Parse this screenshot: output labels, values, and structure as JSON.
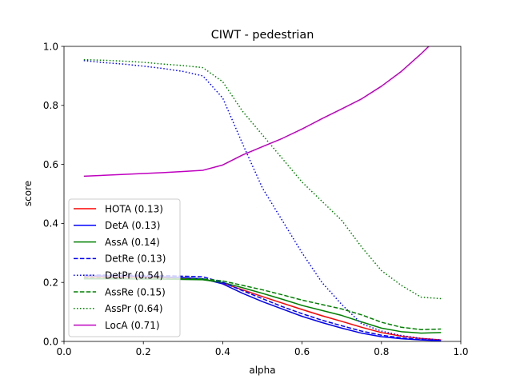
{
  "chart_data": {
    "type": "line",
    "title": "CIWT - pedestrian",
    "xlabel": "alpha",
    "ylabel": "score",
    "xlim": [
      0.0,
      1.0
    ],
    "ylim": [
      0.0,
      1.0
    ],
    "xticks": [
      "0.0",
      "0.2",
      "0.4",
      "0.6",
      "0.8",
      "1.0"
    ],
    "yticks": [
      "0.0",
      "0.2",
      "0.4",
      "0.6",
      "0.8",
      "1.0"
    ],
    "grid": false,
    "legend_position": "lower-left",
    "x": [
      0.05,
      0.1,
      0.15,
      0.2,
      0.25,
      0.3,
      0.35,
      0.4,
      0.45,
      0.5,
      0.55,
      0.6,
      0.65,
      0.7,
      0.75,
      0.8,
      0.85,
      0.9,
      0.95
    ],
    "series": [
      {
        "name": "HOTA (0.13)",
        "color": "#ff0000",
        "dash": "solid",
        "values": [
          0.218,
          0.218,
          0.218,
          0.217,
          0.216,
          0.214,
          0.211,
          0.198,
          0.175,
          0.152,
          0.13,
          0.108,
          0.087,
          0.068,
          0.048,
          0.03,
          0.018,
          0.01,
          0.005
        ]
      },
      {
        "name": "DetA (0.13)",
        "color": "#0000ff",
        "dash": "solid",
        "values": [
          0.222,
          0.222,
          0.222,
          0.221,
          0.219,
          0.216,
          0.212,
          0.195,
          0.163,
          0.135,
          0.11,
          0.085,
          0.064,
          0.045,
          0.028,
          0.016,
          0.009,
          0.005,
          0.002
        ]
      },
      {
        "name": "AssA (0.14)",
        "color": "#008000",
        "dash": "solid",
        "values": [
          0.212,
          0.212,
          0.212,
          0.211,
          0.211,
          0.21,
          0.209,
          0.2,
          0.182,
          0.163,
          0.143,
          0.122,
          0.105,
          0.088,
          0.066,
          0.045,
          0.033,
          0.028,
          0.03
        ]
      },
      {
        "name": "DetRe (0.13)",
        "color": "#0000ff",
        "dash": "dashed",
        "values": [
          0.225,
          0.225,
          0.225,
          0.224,
          0.223,
          0.221,
          0.219,
          0.2,
          0.172,
          0.145,
          0.118,
          0.094,
          0.072,
          0.053,
          0.035,
          0.021,
          0.012,
          0.006,
          0.003
        ]
      },
      {
        "name": "DetPr (0.54)",
        "color": "#0000ff",
        "dash": "dotted",
        "values": [
          0.952,
          0.945,
          0.94,
          0.933,
          0.925,
          0.915,
          0.9,
          0.825,
          0.67,
          0.52,
          0.41,
          0.3,
          0.2,
          0.125,
          0.06,
          0.035,
          0.02,
          0.01,
          0.005
        ]
      },
      {
        "name": "AssRe (0.15)",
        "color": "#008000",
        "dash": "dashed",
        "values": [
          0.215,
          0.215,
          0.215,
          0.214,
          0.214,
          0.213,
          0.212,
          0.205,
          0.19,
          0.175,
          0.158,
          0.14,
          0.125,
          0.11,
          0.09,
          0.065,
          0.048,
          0.04,
          0.042
        ]
      },
      {
        "name": "AssPr (0.64)",
        "color": "#008000",
        "dash": "dotted",
        "values": [
          0.955,
          0.953,
          0.95,
          0.946,
          0.94,
          0.935,
          0.928,
          0.88,
          0.78,
          0.7,
          0.62,
          0.54,
          0.475,
          0.41,
          0.32,
          0.24,
          0.19,
          0.15,
          0.145
        ]
      },
      {
        "name": "LocA (0.71)",
        "color": "#bf00bf",
        "dash": "solid",
        "values": [
          0.56,
          0.563,
          0.566,
          0.569,
          0.572,
          0.576,
          0.58,
          0.598,
          0.632,
          0.66,
          0.688,
          0.72,
          0.755,
          0.788,
          0.822,
          0.865,
          0.915,
          0.975,
          1.04
        ]
      }
    ]
  }
}
